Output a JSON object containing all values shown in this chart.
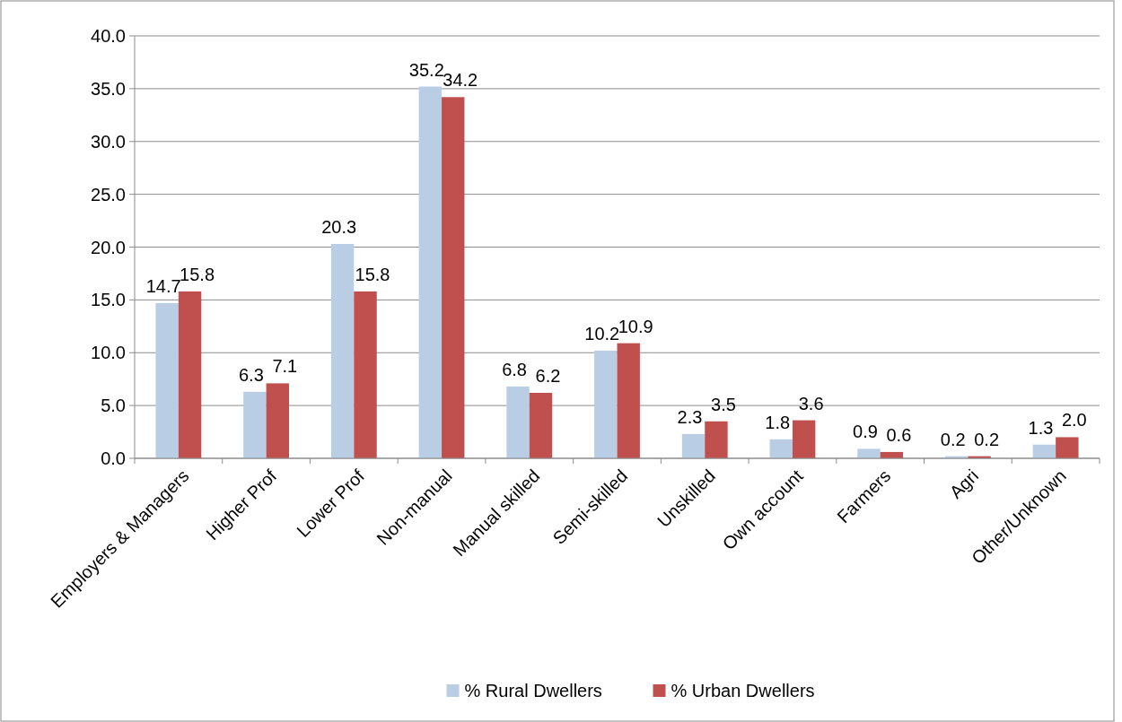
{
  "chart_data": {
    "type": "bar",
    "categories": [
      "Employers & Managers",
      "Higher Prof",
      "Lower Prof",
      "Non-manual",
      "Manual skilled",
      "Semi-skilled",
      "Unskilled",
      "Own account",
      "Farmers",
      "Agri",
      "Other/Unknown"
    ],
    "series": [
      {
        "name": "% Rural Dwellers",
        "color": "#b9cde5",
        "values": [
          14.7,
          6.3,
          20.3,
          35.2,
          6.8,
          10.2,
          2.3,
          1.8,
          0.9,
          0.2,
          1.3
        ],
        "value_labels": [
          "14.7",
          "6.3",
          "20.3",
          "35.2",
          "6.8",
          "10.2",
          "2.3",
          "1.8",
          "0.9",
          "0.2",
          "1.3"
        ]
      },
      {
        "name": "% Urban Dwellers",
        "color": "#c0504d",
        "values": [
          15.8,
          7.1,
          15.8,
          34.2,
          6.2,
          10.9,
          3.5,
          3.6,
          0.6,
          0.2,
          2.0
        ],
        "value_labels": [
          "15.8",
          "7.1",
          "15.8",
          "34.2",
          "6.2",
          "10.9",
          "3.5",
          "3.6",
          "0.6",
          "0.2",
          "2.0"
        ]
      }
    ],
    "ylim": [
      0,
      40
    ],
    "yticks": [
      {
        "value": 0,
        "label": "0.0"
      },
      {
        "value": 5,
        "label": "5.0"
      },
      {
        "value": 10,
        "label": "10.0"
      },
      {
        "value": 15,
        "label": "15.0"
      },
      {
        "value": 20,
        "label": "20.0"
      },
      {
        "value": 25,
        "label": "25.0"
      },
      {
        "value": 30,
        "label": "30.0"
      },
      {
        "value": 35,
        "label": "35.0"
      },
      {
        "value": 40,
        "label": "40.0"
      }
    ],
    "grid": "y",
    "legend": "bottom"
  }
}
